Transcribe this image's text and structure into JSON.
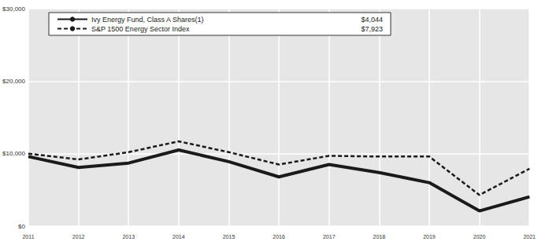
{
  "chart_data": {
    "type": "line",
    "categories": [
      "2011",
      "2012",
      "2013",
      "2014",
      "2015",
      "2016",
      "2017",
      "2018",
      "2019",
      "2020",
      "2021"
    ],
    "series": [
      {
        "name": "Ivy Energy Fund, Class A Shares(1)",
        "color": "#1a1a1a",
        "line_style": "solid",
        "legend_value": "$4,044",
        "values": [
          9600,
          8100,
          8700,
          10500,
          8900,
          6800,
          8500,
          7400,
          6000,
          2100,
          4044
        ]
      },
      {
        "name": "S&P 1500 Energy Sector Index",
        "color": "#1a1a1a",
        "line_style": "dashed",
        "legend_value": "$7,923",
        "values": [
          10000,
          9200,
          10200,
          11700,
          10200,
          8500,
          9700,
          9600,
          9600,
          4300,
          7923
        ]
      }
    ],
    "ylim": [
      0,
      30000
    ],
    "yticks": [
      {
        "value": 0,
        "label": "$0"
      },
      {
        "value": 10000,
        "label": "$10,000"
      },
      {
        "value": 20000,
        "label": "$20,000"
      },
      {
        "value": 30000,
        "label": "$30,000"
      }
    ],
    "grid": true,
    "legend": "upper left"
  }
}
